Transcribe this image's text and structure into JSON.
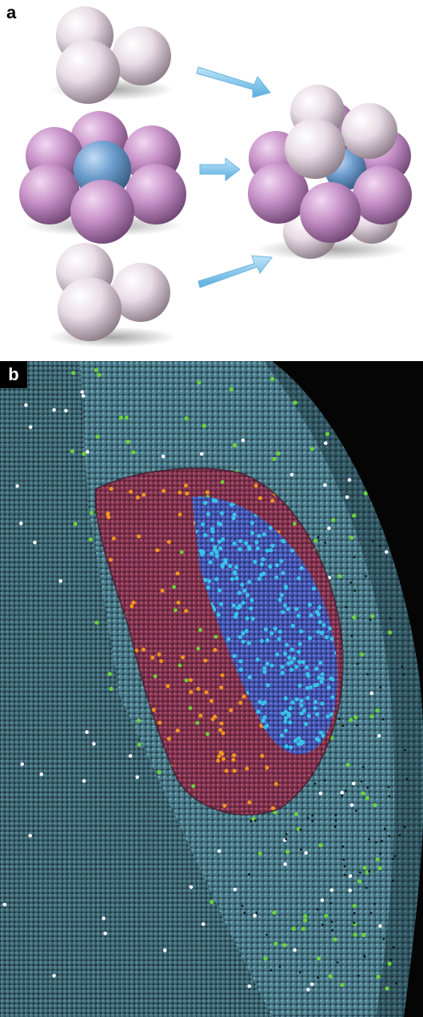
{
  "panel_a": {
    "label": "a",
    "colors": {
      "white_atom": "#e9dde6",
      "pink_atom": "#c893c9",
      "center_atom": "#6f9fcf",
      "arrow": "#7ec3ec"
    }
  },
  "panel_b": {
    "label": "b",
    "colors": {
      "matrix_atom": "#4f8292",
      "precipitate_atom": "#8d3a56",
      "inner_core_atom": "#4a5fc0",
      "cyan_atom": "#38c4e8",
      "orange_atom": "#f2961f",
      "green_atom": "#6cd33a",
      "white_atom": "#ffffff",
      "background": "#050505"
    }
  }
}
